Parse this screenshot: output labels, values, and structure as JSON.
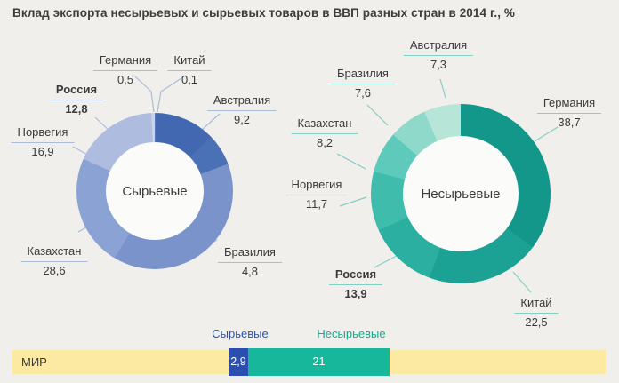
{
  "title": "Вклад экспорта несырьевых и сырьевых товаров в ВВП разных стран в 2014 г., %",
  "charts": [
    {
      "id": "raw",
      "center_label": "Сырьевые",
      "slices": [
        {
          "label": "Китай",
          "value": 0.1,
          "display": "0,1",
          "color": "#6d89c4",
          "bold": false
        },
        {
          "label": "Австралия",
          "value": 9.2,
          "display": "9,2",
          "color": "#4268b2",
          "bold": false
        },
        {
          "label": "Бразилия",
          "value": 4.8,
          "display": "4,8",
          "color": "#4a70b5",
          "bold": false
        },
        {
          "label": "Казахстан",
          "value": 28.6,
          "display": "28,6",
          "color": "#7b93cb",
          "bold": false
        },
        {
          "label": "Норвегия",
          "value": 16.9,
          "display": "16,9",
          "color": "#8ba2d4",
          "bold": false
        },
        {
          "label": "Россия",
          "value": 12.8,
          "display": "12,8",
          "color": "#aebcdf",
          "bold": true
        },
        {
          "label": "Германия",
          "value": 0.5,
          "display": "0,5",
          "color": "#c9d3eb",
          "bold": false
        }
      ]
    },
    {
      "id": "nonraw",
      "center_label": "Несырьевые",
      "slices": [
        {
          "label": "Германия",
          "value": 38.7,
          "display": "38,7",
          "color": "#12978a",
          "bold": false
        },
        {
          "label": "Китай",
          "value": 22.5,
          "display": "22,5",
          "color": "#1ba295",
          "bold": false
        },
        {
          "label": "Россия",
          "value": 13.9,
          "display": "13,9",
          "color": "#2bafa1",
          "bold": true
        },
        {
          "label": "Норвегия",
          "value": 11.7,
          "display": "11,7",
          "color": "#3fbcac",
          "bold": false
        },
        {
          "label": "Казахстан",
          "value": 8.2,
          "display": "8,2",
          "color": "#5ecabb",
          "bold": false
        },
        {
          "label": "Бразилия",
          "value": 7.6,
          "display": "7,6",
          "color": "#8ed9c9",
          "bold": false
        },
        {
          "label": "Австралия",
          "value": 7.3,
          "display": "7,3",
          "color": "#b7e5d8",
          "bold": false
        }
      ]
    }
  ],
  "world_bar": {
    "row_label": "МИР",
    "segments": [
      {
        "label": "Сырьевые",
        "value": 2.9,
        "display": "2,9",
        "color": "#2b4fb0"
      },
      {
        "label": "Несырьевые",
        "value": 21,
        "display": "21",
        "color": "#17b79c"
      }
    ]
  },
  "colors": {
    "background": "#f0efec",
    "hole": "#fbfbf9",
    "title_text": "#3d3d3d",
    "label_text": "#3a3a3a",
    "left_accent": "#a9bcdc",
    "right_accent": "#82cfc5",
    "bar_background": "#fce9a2",
    "bar_raw": "#2b4fb0",
    "bar_nonraw": "#17b79c",
    "legend_raw_text": "#2b55a7",
    "legend_nonraw_text": "#17a88f"
  },
  "chart_data": [
    {
      "type": "pie",
      "title": "Сырьевые",
      "labels": [
        "Китай",
        "Австралия",
        "Бразилия",
        "Казахстан",
        "Норвегия",
        "Россия",
        "Германия"
      ],
      "values": [
        0.1,
        9.2,
        4.8,
        28.6,
        16.9,
        12.8,
        0.5
      ],
      "note": "donut, slices clockwise from top, proportional to value/sum"
    },
    {
      "type": "pie",
      "title": "Несырьевые",
      "labels": [
        "Германия",
        "Китай",
        "Россия",
        "Норвегия",
        "Казахстан",
        "Бразилия",
        "Австралия"
      ],
      "values": [
        38.7,
        22.5,
        13.9,
        11.7,
        8.2,
        7.6,
        7.3
      ],
      "note": "donut, slices clockwise from top, proportional to value/sum"
    },
    {
      "type": "bar",
      "title": "МИР",
      "categories": [
        "Сырьевые",
        "Несырьевые"
      ],
      "values": [
        2.9,
        21
      ],
      "orientation": "horizontal-stacked"
    }
  ]
}
